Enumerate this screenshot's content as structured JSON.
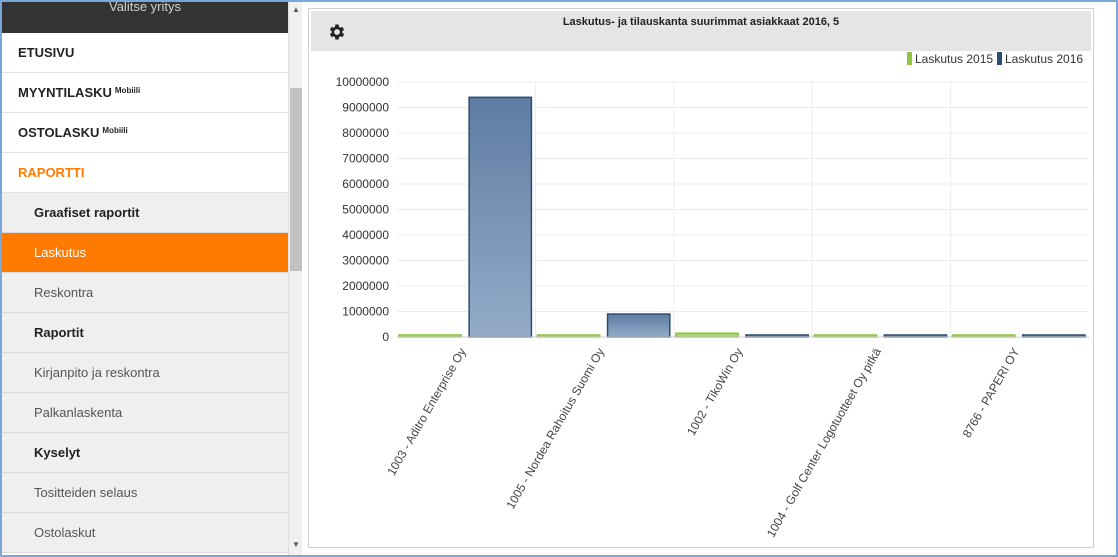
{
  "sidebar": {
    "header": "Valitse yritys",
    "top_items": [
      {
        "label": "ETUSIVU",
        "badge": ""
      },
      {
        "label": "MYYNTILASKU",
        "badge": "Mobiili"
      },
      {
        "label": "OSTOLASKU",
        "badge": "Mobiili"
      },
      {
        "label": "RAPORTTI",
        "badge": ""
      }
    ],
    "sub_items": [
      {
        "label": "Graafiset raportit"
      },
      {
        "label": "Laskutus"
      },
      {
        "label": "Reskontra"
      },
      {
        "label": "Raportit"
      },
      {
        "label": "Kirjanpito ja reskontra"
      },
      {
        "label": "Palkanlaskenta"
      },
      {
        "label": "Kyselyt"
      },
      {
        "label": "Tositteiden selaus"
      },
      {
        "label": "Ostolaskut"
      }
    ]
  },
  "panel": {
    "gear_icon": "gear-icon"
  },
  "colors": {
    "accent": "#ff7a00",
    "series_2015": "#8dc63f",
    "series_2016": "#2e4d73"
  },
  "chart_data": {
    "type": "bar",
    "title": "Laskutus- ja tilauskanta suurimmat asiakkaat 2016, 5",
    "categories": [
      "1003 - Aditro Enterprise Oy",
      "1005 - Nordea Rahoitus Suomi Oy",
      "1002 - TikoWin Oy",
      "1004 - Golf Center Logotuotteet Oy pitkä",
      "8766 - PAPERI OY"
    ],
    "series": [
      {
        "name": "Laskutus 2015",
        "values": [
          80000,
          60000,
          150000,
          70000,
          0
        ]
      },
      {
        "name": "Laskutus 2016",
        "values": [
          9400000,
          900000,
          80000,
          20000,
          10000
        ]
      }
    ],
    "yticks": [
      "10000000",
      "9000000",
      "8000000",
      "7000000",
      "6000000",
      "5000000",
      "4000000",
      "3000000",
      "2000000",
      "1000000",
      "0"
    ],
    "ylim": [
      0,
      10000000
    ],
    "legend": "top-right",
    "grid": true
  }
}
